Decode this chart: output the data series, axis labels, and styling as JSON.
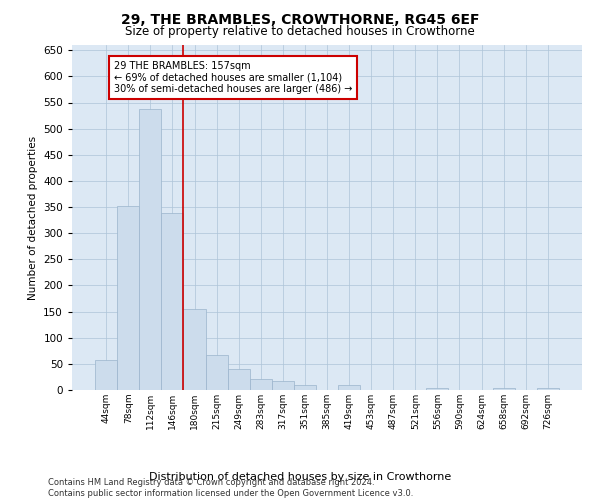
{
  "title": "29, THE BRAMBLES, CROWTHORNE, RG45 6EF",
  "subtitle": "Size of property relative to detached houses in Crowthorne",
  "xlabel": "Distribution of detached houses by size in Crowthorne",
  "ylabel": "Number of detached properties",
  "footer_line1": "Contains HM Land Registry data © Crown copyright and database right 2024.",
  "footer_line2": "Contains public sector information licensed under the Open Government Licence v3.0.",
  "bar_labels": [
    "44sqm",
    "78sqm",
    "112sqm",
    "146sqm",
    "180sqm",
    "215sqm",
    "249sqm",
    "283sqm",
    "317sqm",
    "351sqm",
    "385sqm",
    "419sqm",
    "453sqm",
    "487sqm",
    "521sqm",
    "556sqm",
    "590sqm",
    "624sqm",
    "658sqm",
    "692sqm",
    "726sqm"
  ],
  "bar_values": [
    57,
    352,
    538,
    338,
    155,
    67,
    40,
    22,
    17,
    9,
    0,
    9,
    0,
    0,
    0,
    4,
    0,
    0,
    4,
    0,
    4
  ],
  "bar_color": "#ccdcec",
  "bar_edgecolor": "#9ab4cc",
  "grid_color": "#adc4d8",
  "background_color": "#dce8f4",
  "vline_color": "#cc0000",
  "annotation_line1": "29 THE BRAMBLES: 157sqm",
  "annotation_line2": "← 69% of detached houses are smaller (1,104)",
  "annotation_line3": "30% of semi-detached houses are larger (486) →",
  "annotation_box_color": "#cc0000",
  "ylim": [
    0,
    660
  ],
  "yticks": [
    0,
    50,
    100,
    150,
    200,
    250,
    300,
    350,
    400,
    450,
    500,
    550,
    600,
    650
  ],
  "figsize": [
    6.0,
    5.0
  ],
  "dpi": 100
}
